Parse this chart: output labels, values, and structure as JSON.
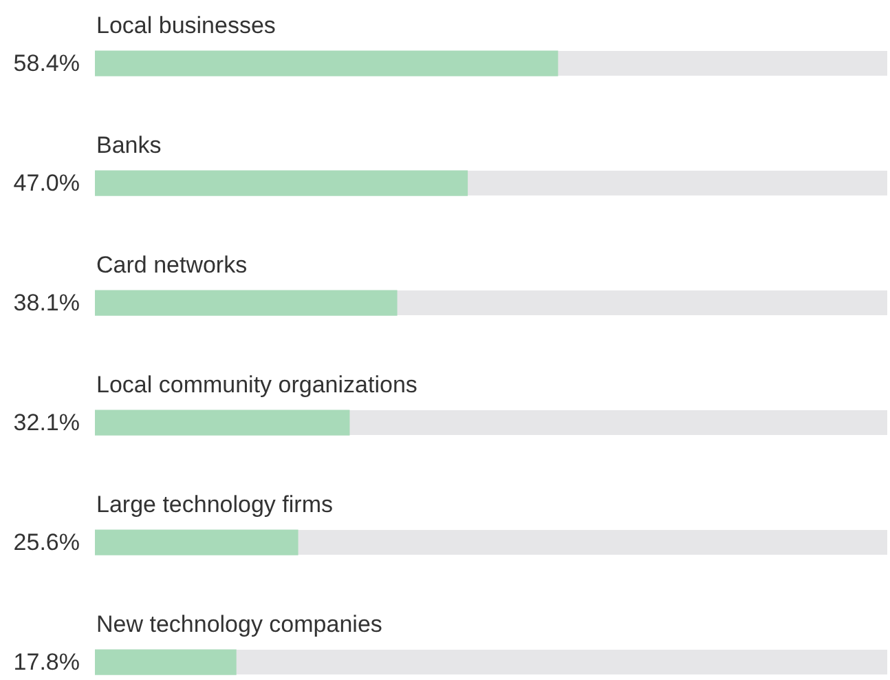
{
  "chart_data": {
    "type": "bar",
    "orientation": "horizontal",
    "categories": [
      "Local businesses",
      "Banks",
      "Card networks",
      "Local community organizations",
      "Large technology firms",
      "New technology companies"
    ],
    "values": [
      58.4,
      47.0,
      38.1,
      32.1,
      25.6,
      17.8
    ],
    "value_labels": [
      "58.4%",
      "47.0%",
      "38.1%",
      "32.1%",
      "25.6%",
      "17.8%"
    ],
    "color": "#a8dab9",
    "xlim": [
      0,
      100
    ],
    "tick_labels": "y"
  }
}
